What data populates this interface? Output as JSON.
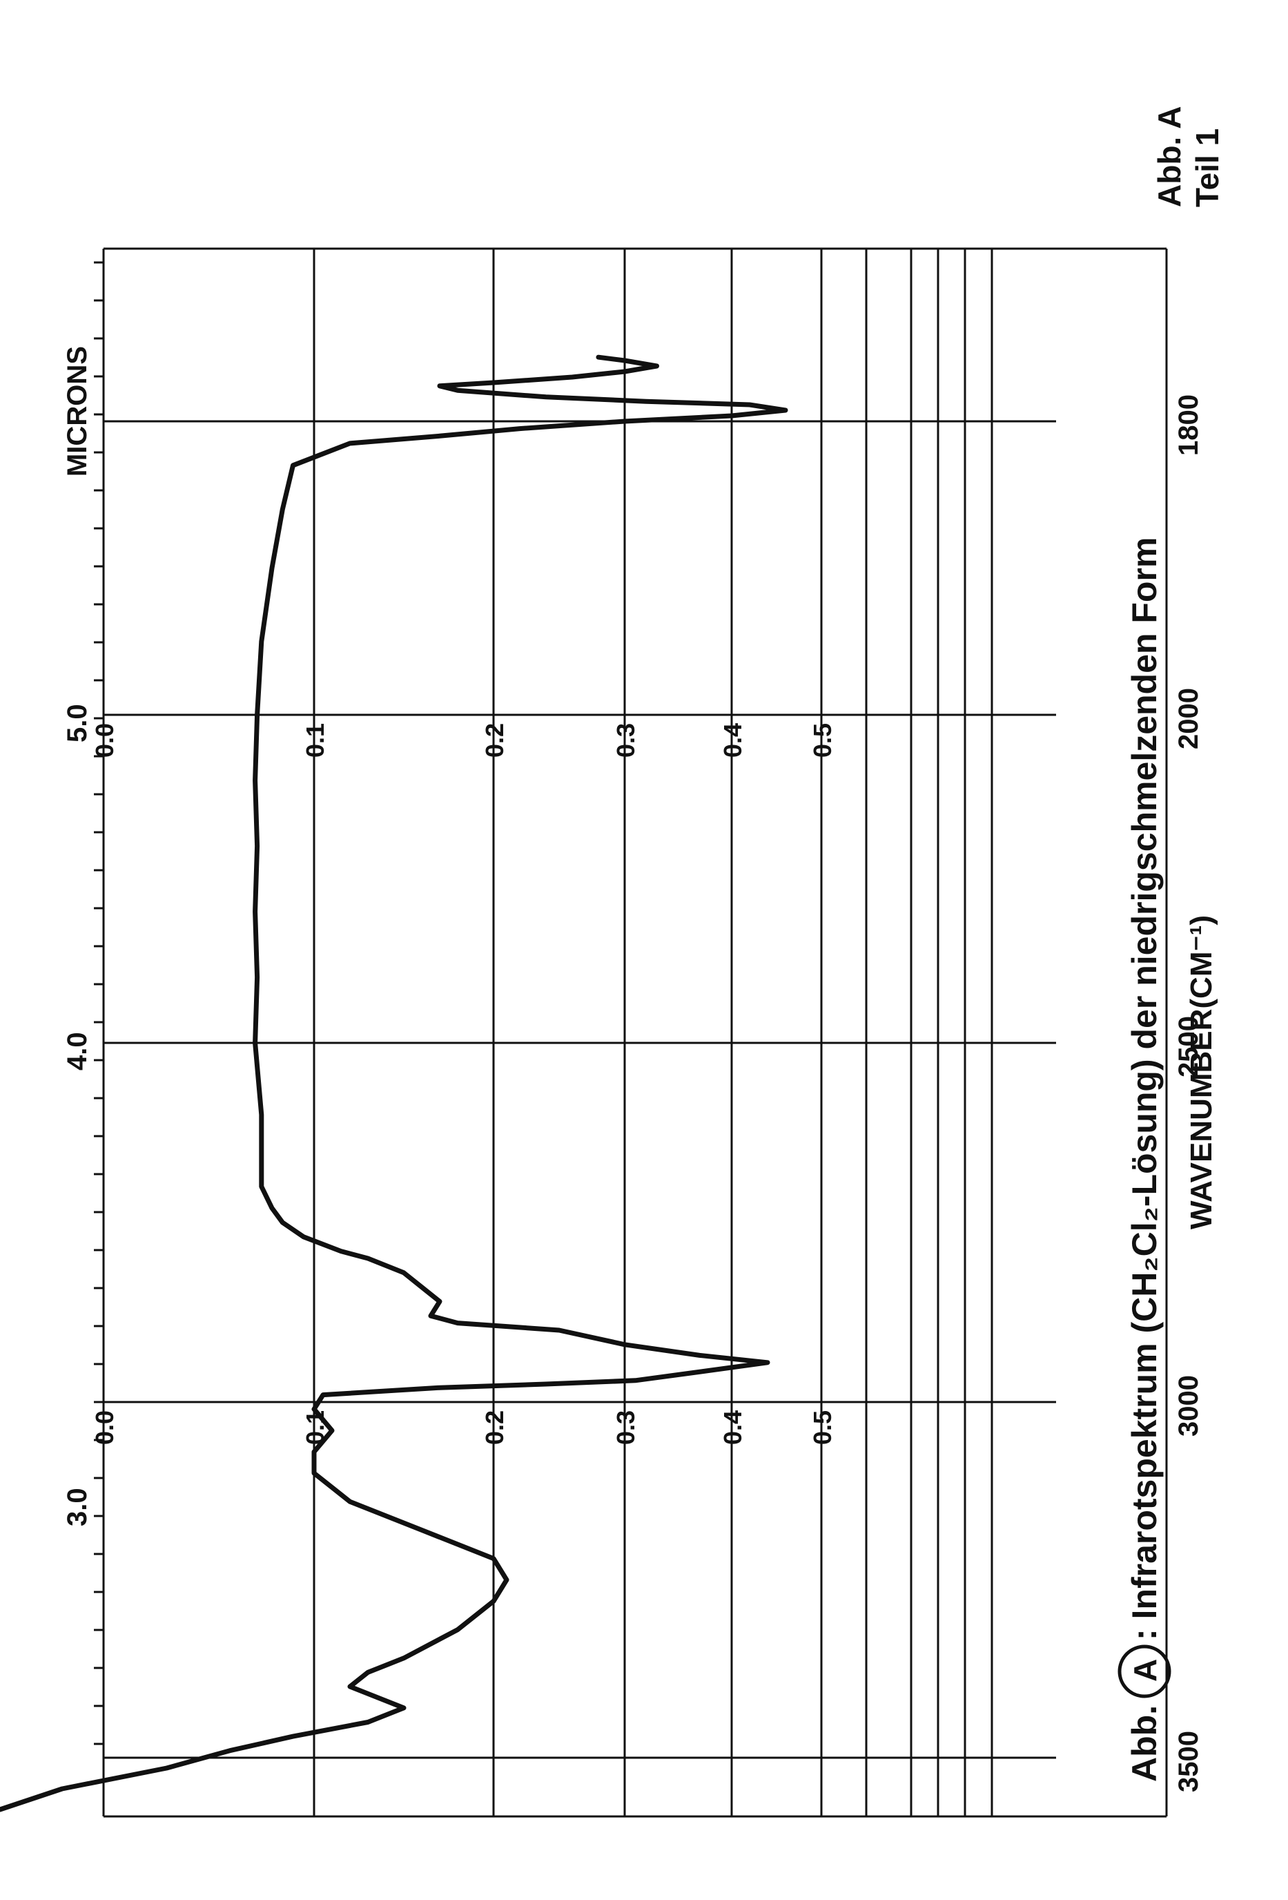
{
  "page": {
    "figure_tag_line1": "Abb. A",
    "figure_tag_line2": "Teil 1",
    "caption_prefix": "Abb.",
    "caption_circle": "A",
    "caption_text": ": Infrarotspektrum (CH₂Cl₂-Lösung) der niedrigschmelzenden Form"
  },
  "chart_data": {
    "type": "line",
    "title": "",
    "x_axis_label": "WAVENUMBER(CM⁻¹)",
    "x_tick_labels": [
      "3500",
      "3000",
      "2500",
      "2000",
      "1800"
    ],
    "x_tick_values": [
      3500,
      3000,
      2500,
      2000,
      1800
    ],
    "top_axis_label": "MICRONS",
    "top_tick_labels": [
      "3.0",
      "4.0",
      "5.0"
    ],
    "top_tick_values": [
      3.0,
      4.0,
      5.0
    ],
    "absorbance_scale_left": [
      "0.0",
      "0.1",
      "0.2",
      "0.3",
      "0.4",
      "0.5"
    ],
    "absorbance_scale_right": [
      "0.0",
      "0.1",
      "0.2",
      "0.3",
      "0.4",
      "0.5"
    ],
    "absorbance_values": [
      0.0,
      0.1,
      0.2,
      0.3,
      0.4,
      0.5
    ],
    "xlim": [
      3600,
      1650
    ],
    "ylim": [
      -0.05,
      0.62
    ],
    "grid": true,
    "series": [
      {
        "name": "",
        "points": [
          [
            3600,
            -0.05
          ],
          [
            3560,
            -0.02
          ],
          [
            3520,
            0.03
          ],
          [
            3490,
            0.06
          ],
          [
            3470,
            0.09
          ],
          [
            3450,
            0.13
          ],
          [
            3430,
            0.15
          ],
          [
            3400,
            0.12
          ],
          [
            3380,
            0.13
          ],
          [
            3360,
            0.15
          ],
          [
            3320,
            0.18
          ],
          [
            3280,
            0.2
          ],
          [
            3250,
            0.21
          ],
          [
            3220,
            0.2
          ],
          [
            3180,
            0.16
          ],
          [
            3140,
            0.12
          ],
          [
            3100,
            0.1
          ],
          [
            3070,
            0.1
          ],
          [
            3040,
            0.11
          ],
          [
            3010,
            0.1
          ],
          [
            2990,
            0.105
          ],
          [
            2980,
            0.17
          ],
          [
            2975,
            0.24
          ],
          [
            2970,
            0.31
          ],
          [
            2960,
            0.36
          ],
          [
            2945,
            0.44
          ],
          [
            2935,
            0.37
          ],
          [
            2920,
            0.3
          ],
          [
            2900,
            0.25
          ],
          [
            2890,
            0.18
          ],
          [
            2880,
            0.165
          ],
          [
            2860,
            0.17
          ],
          [
            2840,
            0.16
          ],
          [
            2820,
            0.15
          ],
          [
            2800,
            0.13
          ],
          [
            2790,
            0.115
          ],
          [
            2770,
            0.095
          ],
          [
            2750,
            0.085
          ],
          [
            2730,
            0.08
          ],
          [
            2700,
            0.075
          ],
          [
            2600,
            0.075
          ],
          [
            2500,
            0.072
          ],
          [
            2400,
            0.073
          ],
          [
            2300,
            0.072
          ],
          [
            2200,
            0.073
          ],
          [
            2100,
            0.072
          ],
          [
            2000,
            0.073
          ],
          [
            1950,
            0.075
          ],
          [
            1900,
            0.08
          ],
          [
            1860,
            0.085
          ],
          [
            1830,
            0.09
          ],
          [
            1815,
            0.12
          ],
          [
            1810,
            0.17
          ],
          [
            1805,
            0.22
          ],
          [
            1800,
            0.3
          ],
          [
            1795,
            0.4
          ],
          [
            1790,
            0.46
          ],
          [
            1785,
            0.42
          ],
          [
            1782,
            0.32
          ],
          [
            1778,
            0.24
          ],
          [
            1772,
            0.18
          ],
          [
            1768,
            0.17
          ],
          [
            1765,
            0.2
          ],
          [
            1760,
            0.26
          ],
          [
            1755,
            0.3
          ],
          [
            1750,
            0.33
          ],
          [
            1745,
            0.3
          ],
          [
            1742,
            0.28
          ]
        ]
      }
    ]
  }
}
